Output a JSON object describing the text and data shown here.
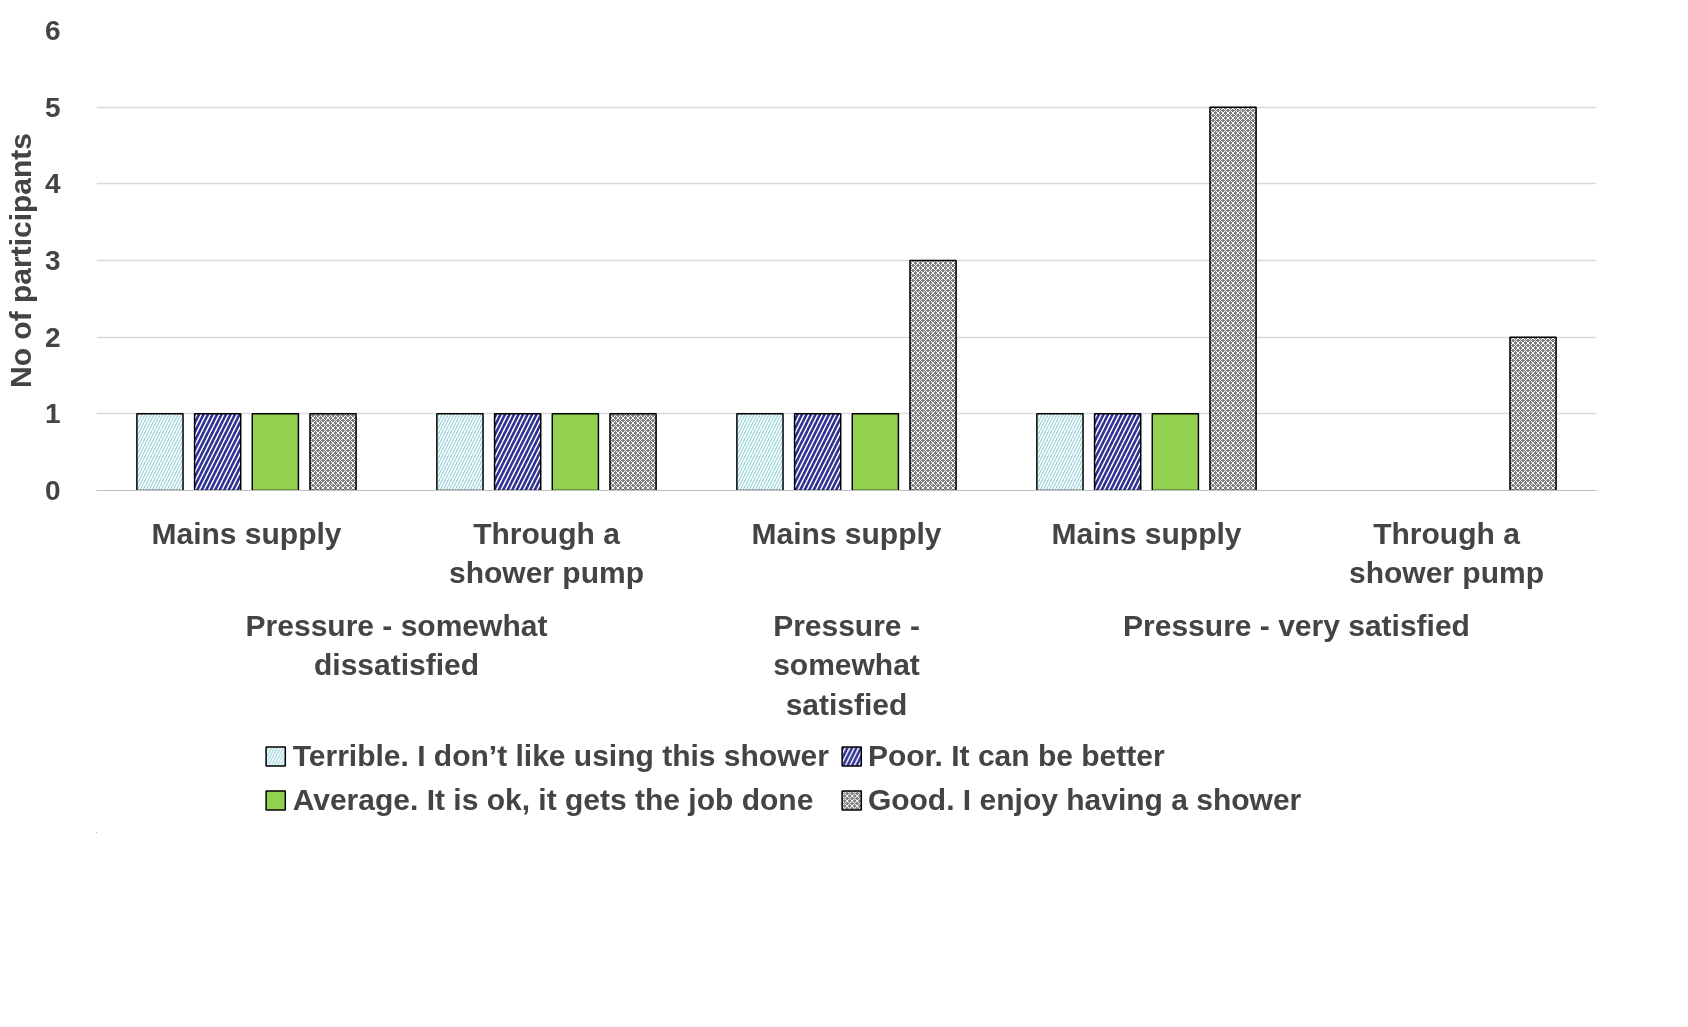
{
  "chart_data": {
    "type": "bar",
    "ylabel": "No of participants",
    "categories": [
      "Mains supply",
      "Through a\nshower pump",
      "Mains supply",
      "Mains supply",
      "Through a\nshower pump"
    ],
    "series": [
      {
        "name": "Terrible. I don’t like using this shower",
        "color": "#9fd6dd",
        "values": [
          1,
          1,
          1,
          1,
          null
        ]
      },
      {
        "name": "Poor. It can be better",
        "color": "#2e3192",
        "values": [
          1,
          1,
          1,
          1,
          null
        ]
      },
      {
        "name": "Average. It is ok, it gets the job done",
        "color": "#92d050",
        "values": [
          1,
          1,
          1,
          1,
          null
        ]
      },
      {
        "name": "Good. I enjoy having a shower",
        "color": "#808080",
        "values": [
          1,
          1,
          3,
          5,
          2
        ]
      }
    ],
    "annotations": [
      "Pressure - somewhat\ndissatisfied",
      "Pressure -\nsomewhat\nsatisfied",
      "Pressure - very satisfied"
    ],
    "ylim": [
      0,
      6
    ],
    "yticks": [
      0,
      1,
      2,
      3,
      4,
      5,
      6
    ],
    "grid": "y",
    "legend": "bottom"
  }
}
